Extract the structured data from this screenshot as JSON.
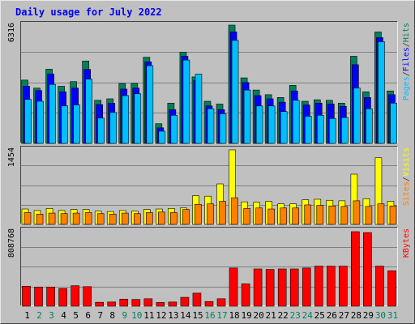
{
  "chart_data": {
    "type": "bar",
    "title": "Daily usage for July 2022",
    "days": [
      "1",
      "2",
      "3",
      "4",
      "5",
      "6",
      "7",
      "8",
      "9",
      "10",
      "11",
      "12",
      "13",
      "14",
      "15",
      "16",
      "17",
      "18",
      "19",
      "20",
      "21",
      "22",
      "23",
      "24",
      "25",
      "26",
      "27",
      "28",
      "29",
      "30",
      "31"
    ],
    "weekend_days": [
      "2",
      "3",
      "9",
      "10",
      "16",
      "17",
      "23",
      "24",
      "30",
      "31"
    ],
    "panels": [
      {
        "ylabel_max": "6316",
        "ymax": 6316,
        "legend": [
          {
            "text": "Pages",
            "color": "#00bfff"
          },
          {
            "text": "/",
            "color": "#333333"
          },
          {
            "text": "Files",
            "color": "#0000ff"
          },
          {
            "text": "/",
            "color": "#333333"
          },
          {
            "text": "Hits",
            "color": "#00805c"
          }
        ],
        "series": [
          {
            "key": "hits",
            "color": "#00805c",
            "values": [
              3380,
              2950,
              3960,
              3050,
              3300,
              4400,
              2300,
              2380,
              3200,
              3200,
              4600,
              1050,
              2150,
              4870,
              3550,
              2250,
              2100,
              6316,
              3500,
              2850,
              2600,
              2450,
              3100,
              2250,
              2330,
              2300,
              2150,
              4650,
              2750,
              5950,
              2800
            ]
          },
          {
            "key": "files",
            "color": "#0000ff",
            "values": [
              3050,
              2820,
              3700,
              2750,
              2950,
              3950,
              2070,
              2150,
              2900,
              2950,
              4350,
              830,
              1800,
              4650,
              3350,
              2000,
              1800,
              5950,
              3250,
              2550,
              2380,
              2200,
              2800,
              2050,
              2150,
              2100,
              1980,
              4200,
              2450,
              5650,
              2600
            ]
          },
          {
            "key": "pages",
            "color": "#00bfff",
            "values": [
              2350,
              2250,
              3150,
              2000,
              2050,
              3430,
              1350,
              1650,
              2550,
              2650,
              4150,
              650,
              1500,
              4450,
              3700,
              1850,
              1580,
              5500,
              2850,
              2000,
              2000,
              1700,
              2300,
              1450,
              1500,
              1330,
              1380,
              2950,
              1850,
              5430,
              2150
            ]
          }
        ]
      },
      {
        "ylabel_max": "1454",
        "ymax": 1454,
        "legend": [
          {
            "text": "Sites",
            "color": "#ff8000"
          },
          {
            "text": "/",
            "color": "#333333"
          },
          {
            "text": "Visits",
            "color": "#ffff00"
          }
        ],
        "series": [
          {
            "key": "visits",
            "color": "#ffff00",
            "values": [
              300,
              270,
              310,
              270,
              290,
              290,
              260,
              250,
              270,
              260,
              290,
              300,
              310,
              320,
              560,
              550,
              790,
              1454,
              440,
              430,
              450,
              400,
              400,
              480,
              490,
              470,
              460,
              980,
              500,
              1300,
              450
            ]
          },
          {
            "key": "sites",
            "color": "#ff8000",
            "values": [
              230,
              200,
              220,
              210,
              220,
              230,
              210,
              200,
              220,
              210,
              230,
              240,
              230,
              290,
              390,
              400,
              450,
              520,
              310,
              320,
              300,
              320,
              320,
              380,
              370,
              360,
              350,
              460,
              350,
              400,
              360
            ]
          }
        ]
      },
      {
        "ylabel_max": "808768",
        "ymax": 808768,
        "legend": [
          {
            "text": "KBytes",
            "color": "#ff0000"
          }
        ],
        "series": [
          {
            "key": "kbytes",
            "color": "#ff0000",
            "values": [
              215000,
              205000,
              205000,
              190000,
              220000,
              210000,
              42000,
              45000,
              75000,
              72000,
              80000,
              40000,
              45000,
              95000,
              140000,
              50000,
              80000,
              410000,
              240000,
              400000,
              395000,
              400000,
              400000,
              410000,
              430000,
              430000,
              430000,
              800000,
              790000,
              430000,
              380000
            ]
          }
        ]
      }
    ]
  },
  "colors": {
    "background": "#c0c0c0",
    "title": "#0000ff",
    "weekday_label": "#000000",
    "weekend_label": "#00805c",
    "gridline": "#808080"
  }
}
